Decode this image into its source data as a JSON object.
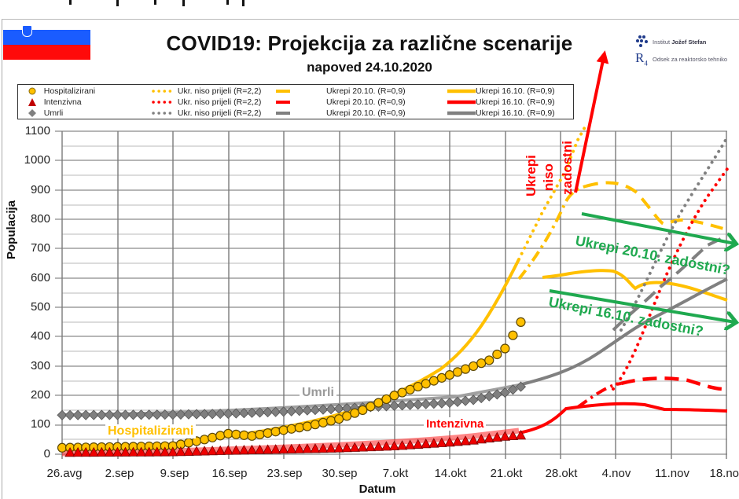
{
  "header": {
    "title": "COVID19: Projekcija za različne scenarije",
    "subtitle": "napoved 24.10.2020",
    "flag": "slovenia-flag",
    "logos": [
      {
        "icon": "ijs-dots-logo",
        "text_light": "Institut",
        "text_bold": "Jožef Stefan"
      },
      {
        "icon": "r4-logo",
        "text_light": "Odsek za reaktorsko tehniko",
        "text_bold": ""
      }
    ]
  },
  "legend": {
    "rows": [
      {
        "observed": "Hospitalizirani",
        "dotted": "Ukr. niso prijeli (R=2,2)",
        "dashed": "Ukrepi 20.10. (R=0,9)",
        "solid": "Ukrepi 16.10. (R=0,9)",
        "color": "#ffc000",
        "marker": "circle"
      },
      {
        "observed": "Intenzivna",
        "dotted": "Ukr. niso prijeli (R=2,2)",
        "dashed": "Ukrepi 20.10. (R=0,9)",
        "solid": "Ukrepi 16.10. (R=0,9)",
        "color": "#ff0000",
        "marker": "triangle"
      },
      {
        "observed": "Umrli",
        "dotted": "Ukr. niso prijeli (R=2,2)",
        "dashed": "Ukrepi 20.10. (R=0,9)",
        "solid": "Ukrepi 16.10. (R=0,9)",
        "color": "#808080",
        "marker": "diamond"
      }
    ]
  },
  "annotations": {
    "not_enough": [
      "Ukrepi",
      "niso",
      "zadostni"
    ],
    "measures_2010": "Ukrepi 20.10. zadostni?",
    "measures_1610": "Ukrepi 16.10. zadostni?",
    "label_hosp": "Hospitalizirani",
    "label_icu": "Intenzivna",
    "label_dead": "Umrli"
  },
  "colors": {
    "hosp": "#ffc000",
    "icu": "#ff0000",
    "dead": "#808080",
    "green": "#1fa94f",
    "grid": "#bfbfbf",
    "grid_major": "#7f7f7f"
  },
  "chart_data": {
    "type": "line",
    "title": "COVID19: Projekcija za različne scenarije",
    "subtitle": "napoved 24.10.2020",
    "xlabel": "Datum",
    "ylabel": "Populacija",
    "ylim": [
      0,
      1100
    ],
    "yticks": [
      0,
      100,
      200,
      300,
      400,
      500,
      600,
      700,
      800,
      900,
      1000,
      1100
    ],
    "categories": [
      "26.avg",
      "2.sep",
      "9.sep",
      "16.sep",
      "23.sep",
      "30.sep",
      "7.okt",
      "14.okt",
      "21.okt",
      "28.okt",
      "4.nov",
      "11.nov",
      "18.nov"
    ],
    "grid": true,
    "legend_position": "top",
    "observed": [
      {
        "name": "Hospitalizirani",
        "marker": "circle",
        "color": "#ffc000",
        "x_days_from_26avg": [
          0,
          7,
          14,
          18,
          21,
          24,
          28,
          31,
          35,
          38,
          42,
          45,
          49,
          52,
          54,
          56,
          58
        ],
        "values": [
          22,
          25,
          28,
          50,
          70,
          62,
          82,
          95,
          120,
          150,
          200,
          230,
          270,
          300,
          320,
          360,
          450
        ]
      },
      {
        "name": "Intenzivna",
        "marker": "triangle",
        "color": "#ff0000",
        "x_days_from_26avg": [
          0,
          7,
          14,
          21,
          28,
          35,
          42,
          49,
          52,
          54,
          56,
          58
        ],
        "values": [
          3,
          4,
          5,
          10,
          14,
          18,
          25,
          38,
          45,
          52,
          58,
          62
        ]
      },
      {
        "name": "Umrli",
        "marker": "diamond",
        "color": "#808080",
        "x_days_from_26avg": [
          0,
          7,
          14,
          21,
          28,
          35,
          42,
          49,
          52,
          56,
          58
        ],
        "values": [
          133,
          134,
          135,
          138,
          145,
          155,
          165,
          175,
          185,
          210,
          230
        ]
      }
    ],
    "projections": [
      {
        "name": "Hospitalizirani – Ukr. niso prijeli (R=2,2)",
        "style": "dotted",
        "color": "#ffc000",
        "x_days_from_26avg": [
          58,
          62,
          66,
          68,
          70
        ],
        "values": [
          450,
          600,
          760,
          930,
          1100
        ]
      },
      {
        "name": "Hospitalizirani – Ukrepi 20.10. (R=0,9)",
        "style": "dashed",
        "color": "#ffc000",
        "x_days_from_26avg": [
          58,
          62,
          66,
          70,
          74,
          77,
          80,
          83,
          86
        ],
        "values": [
          450,
          590,
          880,
          910,
          880,
          790,
          810,
          790,
          770
        ]
      },
      {
        "name": "Hospitalizirani – Ukrepi 16.10. (R=0,9)",
        "style": "solid",
        "color": "#ffc000",
        "x_days_from_26avg": [
          58,
          62,
          66,
          70,
          74,
          77,
          80,
          84,
          86
        ],
        "values": [
          450,
          590,
          610,
          620,
          590,
          540,
          550,
          520,
          495
        ]
      },
      {
        "name": "Intenzivna – Ukr. niso prijeli (R=2,2)",
        "style": "dotted",
        "color": "#ff0000",
        "x_days_from_26avg": [
          66,
          70,
          74,
          78,
          82,
          86
        ],
        "values": [
          160,
          250,
          420,
          650,
          800,
          950
        ]
      },
      {
        "name": "Intenzivna – Ukrepi 20.10. (R=0,9)",
        "style": "dashed",
        "color": "#ff0000",
        "x_days_from_26avg": [
          58,
          66,
          70,
          74,
          78,
          82,
          86
        ],
        "values": [
          62,
          160,
          230,
          245,
          250,
          240,
          220
        ]
      },
      {
        "name": "Intenzivna – Ukrepi 16.10. (R=0,9)",
        "style": "solid",
        "color": "#ff0000",
        "x_days_from_26avg": [
          58,
          62,
          66,
          70,
          74,
          78,
          82,
          86
        ],
        "values": [
          62,
          95,
          155,
          168,
          170,
          165,
          150,
          145
        ]
      },
      {
        "name": "Umrli – Ukr. niso prijeli (R=2,2)",
        "style": "dotted",
        "color": "#808080",
        "x_days_from_26avg": [
          74,
          78,
          82,
          86
        ],
        "values": [
          450,
          620,
          830,
          1075
        ]
      },
      {
        "name": "Umrli – Ukrepi 20.10. (R=0,9)",
        "style": "dashed",
        "color": "#808080",
        "x_days_from_26avg": [
          58,
          66,
          74,
          78,
          82,
          86
        ],
        "values": [
          230,
          280,
          420,
          520,
          630,
          720
        ]
      },
      {
        "name": "Umrli – Ukrepi 16.10. (R=0,9)",
        "style": "solid",
        "color": "#808080",
        "x_days_from_26avg": [
          58,
          62,
          66,
          70,
          74,
          78,
          82,
          86
        ],
        "values": [
          230,
          250,
          280,
          330,
          400,
          460,
          530,
          590
        ]
      }
    ]
  }
}
